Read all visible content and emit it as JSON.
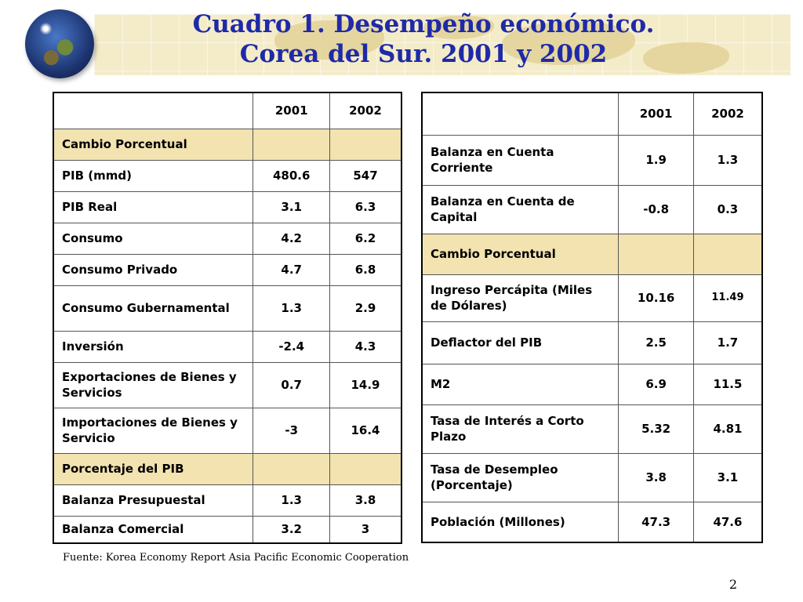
{
  "slide": {
    "title_line1": "Cuadro 1. Desempeño económico.",
    "title_line2": "Corea del Sur. 2001 y 2002",
    "source": "Fuente: Korea Economy Report Asia Pacific Economic Cooperation",
    "page_number": "2"
  },
  "left_table": {
    "headers": [
      "",
      "2001",
      "2002"
    ],
    "rows": [
      {
        "label": "Cambio Porcentual",
        "v2001": "",
        "v2002": "",
        "section": true
      },
      {
        "label": "PIB (mmd)",
        "v2001": "480.6",
        "v2002": "547"
      },
      {
        "label": "PIB Real",
        "v2001": "3.1",
        "v2002": "6.3"
      },
      {
        "label": "Consumo",
        "v2001": "4.2",
        "v2002": "6.2"
      },
      {
        "label": "Consumo Privado",
        "v2001": "4.7",
        "v2002": "6.8"
      },
      {
        "label": "Consumo Gubernamental",
        "v2001": "1.3",
        "v2002": "2.9"
      },
      {
        "label": "Inversión",
        "v2001": "-2.4",
        "v2002": "4.3"
      },
      {
        "label": "Exportaciones de Bienes y Servicios",
        "v2001": "0.7",
        "v2002": "14.9"
      },
      {
        "label": "Importaciones de Bienes y Servicio",
        "v2001": "-3",
        "v2002": "16.4"
      },
      {
        "label": "Porcentaje del PIB",
        "v2001": "",
        "v2002": "",
        "section": true
      },
      {
        "label": "Balanza Presupuestal",
        "v2001": "1.3",
        "v2002": "3.8"
      },
      {
        "label": "Balanza Comercial",
        "v2001": "3.2",
        "v2002": "3"
      }
    ]
  },
  "right_table": {
    "headers": [
      "",
      "2001",
      "2002"
    ],
    "rows": [
      {
        "label": "Balanza en Cuenta Corriente",
        "v2001": "1.9",
        "v2002": "1.3"
      },
      {
        "label": "Balanza en Cuenta de Capital",
        "v2001": "-0.8",
        "v2002": "0.3"
      },
      {
        "label": "Cambio Porcentual",
        "v2001": "",
        "v2002": "",
        "section": true
      },
      {
        "label": "Ingreso Percápita (Miles de Dólares)",
        "v2001": "10.16",
        "v2002": "11.49"
      },
      {
        "label": "Deflactor del PIB",
        "v2001": "2.5",
        "v2002": "1.7"
      },
      {
        "label": "M2",
        "v2001": "6.9",
        "v2002": "11.5"
      },
      {
        "label": "Tasa de Interés a Corto Plazo",
        "v2001": "5.32",
        "v2002": "4.81"
      },
      {
        "label": "Tasa de Desempleo (Porcentaje)",
        "v2001": "3.8",
        "v2002": "3.1"
      },
      {
        "label": "Población (Millones)",
        "v2001": "47.3",
        "v2002": "47.6"
      }
    ]
  }
}
